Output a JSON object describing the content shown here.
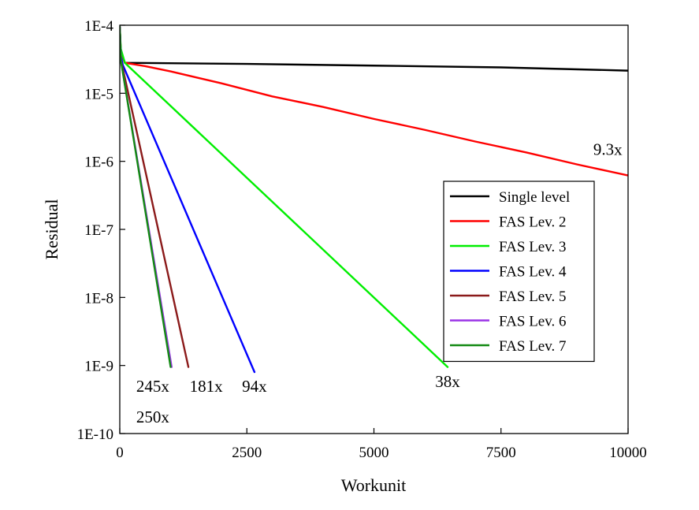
{
  "chart_data": {
    "type": "line",
    "title": "",
    "xlabel": "Workunit",
    "ylabel": "Residual",
    "xlim": [
      0,
      10000
    ],
    "ylim": [
      1e-10,
      0.0001
    ],
    "yscale": "log",
    "grid": false,
    "legend_position": "right",
    "x_ticks": [
      0,
      2500,
      5000,
      7500,
      10000
    ],
    "x_tick_labels": [
      "0",
      "2500",
      "5000",
      "7500",
      "10000"
    ],
    "y_ticks": [
      1e-10,
      1e-09,
      1e-08,
      1e-07,
      1e-06,
      1e-05,
      0.0001
    ],
    "y_tick_labels": [
      "1E-10",
      "1E-9",
      "1E-8",
      "1E-7",
      "1E-6",
      "1E-5",
      "1E-4"
    ],
    "series": [
      {
        "name": "Single level",
        "color": "#000000",
        "points": [
          [
            0,
            9.5e-05
          ],
          [
            20,
            4e-05
          ],
          [
            100,
            2.8e-05
          ],
          [
            2500,
            2.7e-05
          ],
          [
            5000,
            2.55e-05
          ],
          [
            7500,
            2.4e-05
          ],
          [
            10000,
            2.15e-05
          ]
        ]
      },
      {
        "name": "FAS Lev. 2",
        "color": "#ff0000",
        "points": [
          [
            0,
            9.5e-05
          ],
          [
            20,
            4e-05
          ],
          [
            100,
            2.8e-05
          ],
          [
            500,
            2.5e-05
          ],
          [
            1000,
            2.1e-05
          ],
          [
            2000,
            1.4e-05
          ],
          [
            3000,
            9e-06
          ],
          [
            4000,
            6.3e-06
          ],
          [
            5000,
            4.2e-06
          ],
          [
            6000,
            2.9e-06
          ],
          [
            7000,
            1.95e-06
          ],
          [
            8000,
            1.35e-06
          ],
          [
            9000,
            9e-07
          ],
          [
            10000,
            6.2e-07
          ]
        ]
      },
      {
        "name": "FAS Lev. 3",
        "color": "#00ee00",
        "points": [
          [
            0,
            9.5e-05
          ],
          [
            20,
            4.5e-05
          ],
          [
            100,
            2.8e-05
          ],
          [
            6450,
            9.5e-10
          ]
        ]
      },
      {
        "name": "FAS Lev. 4",
        "color": "#0000ff",
        "points": [
          [
            0,
            9.5e-05
          ],
          [
            20,
            3.5e-05
          ],
          [
            60,
            2.6e-05
          ],
          [
            2650,
            8e-10
          ]
        ]
      },
      {
        "name": "FAS Lev. 5",
        "color": "#8b1a1a",
        "points": [
          [
            0,
            9.5e-05
          ],
          [
            20,
            3e-05
          ],
          [
            50,
            2.5e-05
          ],
          [
            1350,
            9.5e-10
          ]
        ]
      },
      {
        "name": "FAS Lev. 6",
        "color": "#9a32e6",
        "points": [
          [
            0,
            9.5e-05
          ],
          [
            20,
            3e-05
          ],
          [
            40,
            2.5e-05
          ],
          [
            1020,
            9.5e-10
          ]
        ]
      },
      {
        "name": "FAS Lev. 7",
        "color": "#138a13",
        "points": [
          [
            0,
            9.5e-05
          ],
          [
            20,
            3e-05
          ],
          [
            40,
            2.5e-05
          ],
          [
            1000,
            9.5e-10
          ]
        ]
      }
    ],
    "annotations": [
      {
        "text": "9.3x",
        "x": 9600,
        "y": 1.25e-06
      },
      {
        "text": "38x",
        "x": 6450,
        "y": 4.8e-10
      },
      {
        "text": "94x",
        "x": 2650,
        "y": 4.1e-10
      },
      {
        "text": "181x",
        "x": 1700,
        "y": 4.1e-10
      },
      {
        "text": "245x",
        "x": 650,
        "y": 4.1e-10
      },
      {
        "text": "250x",
        "x": 650,
        "y": 1.45e-10
      }
    ]
  }
}
